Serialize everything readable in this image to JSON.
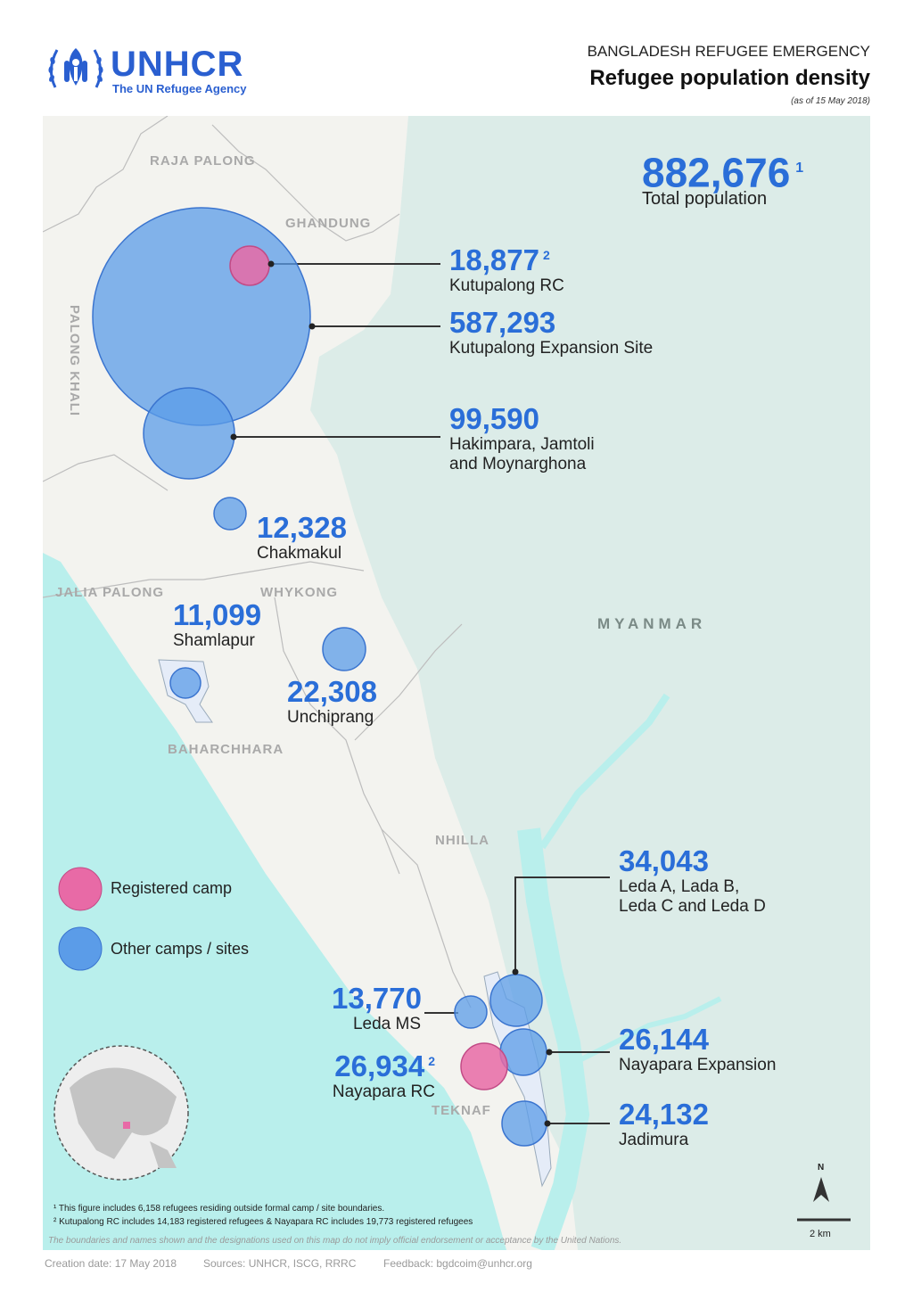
{
  "header": {
    "org": "UNHCR",
    "org_sub": "The UN Refugee Agency",
    "kicker": "BANGLADESH REFUGEE EMERGENCY",
    "title": "Refugee population density",
    "date": "(as of 15 May 2018)"
  },
  "total": {
    "value": "882,676",
    "note": "1",
    "label": "Total population"
  },
  "sites": [
    {
      "value": "18,877",
      "note": "2",
      "name": "Kutupalong RC",
      "type": "registered"
    },
    {
      "value": "587,293",
      "note": "",
      "name": "Kutupalong Expansion Site",
      "type": "other"
    },
    {
      "value": "99,590",
      "note": "",
      "name": "Hakimpara, Jamtoli",
      "name2": "and Moynarghona",
      "type": "other"
    },
    {
      "value": "12,328",
      "note": "",
      "name": "Chakmakul",
      "type": "other"
    },
    {
      "value": "11,099",
      "note": "",
      "name": "Shamlapur",
      "type": "other"
    },
    {
      "value": "22,308",
      "note": "",
      "name": "Unchiprang",
      "type": "other"
    },
    {
      "value": "34,043",
      "note": "",
      "name": "Leda A, Lada B,",
      "name2": "Leda C and Leda D",
      "type": "other"
    },
    {
      "value": "13,770",
      "note": "",
      "name": "Leda MS",
      "type": "other"
    },
    {
      "value": "26,934",
      "note": "2",
      "name": "Nayapara RC",
      "type": "registered"
    },
    {
      "value": "26,144",
      "note": "",
      "name": "Nayapara Expansion",
      "type": "other"
    },
    {
      "value": "24,132",
      "note": "",
      "name": "Jadimura",
      "type": "other"
    }
  ],
  "areas": [
    "RAJA PALONG",
    "GHANDUNG",
    "PALONG KHALI",
    "JALIA PALONG",
    "WHYKONG",
    "BAHARCHHARA",
    "NHILLA",
    "TEKNAF"
  ],
  "country": "MYANMAR",
  "legend": [
    {
      "label": "Registered camp",
      "color": "#e86aa6"
    },
    {
      "label": "Other camps / sites",
      "color": "#5b9ce8"
    }
  ],
  "colors": {
    "land": "#f3f3ef",
    "myanmar": "#dcece8",
    "sea": "#b9efec",
    "accent": "#2a6ed8"
  },
  "scale": {
    "label": "2 km",
    "north": "N"
  },
  "footnotes": [
    "¹ This figure includes 6,158 refugees residing outside formal camp / site boundaries.",
    "² Kutupalong RC includes 14,183 registered refugees & Nayapara RC includes 19,773 registered refugees"
  ],
  "disclaimer": "The boundaries and names shown and the designations used on this map do not imply official endorsement or acceptance by the United Nations.",
  "meta": {
    "created": "Creation date: 17 May 2018",
    "sources": "Sources: UNHCR, ISCG, RRRC",
    "feedback": "Feedback: bgdcoim@unhcr.org"
  }
}
